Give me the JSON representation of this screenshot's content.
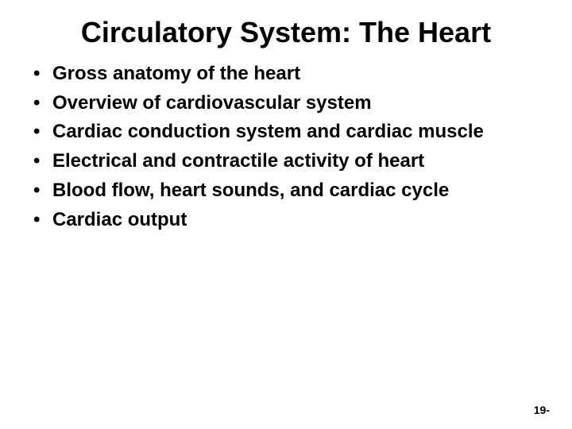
{
  "title": "Circulatory System: The Heart",
  "bullets": [
    "Gross anatomy of the heart",
    "Overview of cardiovascular system",
    "Cardiac conduction system and cardiac muscle",
    "Electrical and contractile activity of heart",
    "Blood flow, heart sounds, and cardiac cycle",
    "Cardiac output"
  ],
  "page_number": "19-",
  "styling": {
    "background_color": "#ffffff",
    "text_color": "#000000",
    "title_fontsize": 36,
    "bullet_fontsize": 24,
    "page_number_fontsize": 14,
    "font_family": "Arial",
    "font_weight": "bold"
  }
}
